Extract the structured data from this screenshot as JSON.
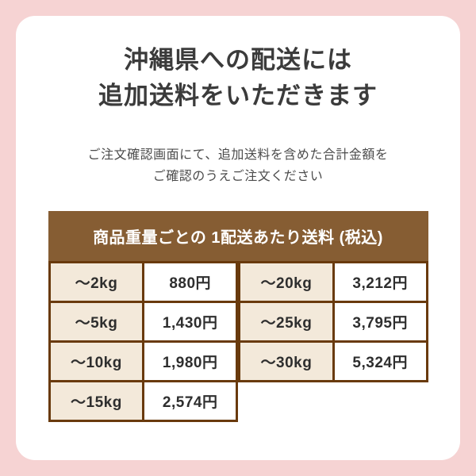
{
  "notice": {
    "title_line1": "沖縄県への配送には",
    "title_line2": "追加送料をいただきます",
    "subtitle_line1": "ご注文確認画面にて、追加送料を含めた合計金額を",
    "subtitle_line2": "ご確認のうえご注文ください"
  },
  "fee_table": {
    "header": "商品重量ごとの 1配送あたり送料 (税込)",
    "left_rows": [
      {
        "weight": "～2kg",
        "price": "880円"
      },
      {
        "weight": "～5kg",
        "price": "1,430円"
      },
      {
        "weight": "～10kg",
        "price": "1,980円"
      },
      {
        "weight": "～15kg",
        "price": "2,574円"
      }
    ],
    "right_rows": [
      {
        "weight": "～20kg",
        "price": "3,212円"
      },
      {
        "weight": "～25kg",
        "price": "3,795円"
      },
      {
        "weight": "～30kg",
        "price": "5,324円"
      }
    ]
  },
  "colors": {
    "background": "#f6d3d3",
    "card": "#ffffff",
    "table_header_bg": "#865d33",
    "table_border": "#693a0d",
    "weight_cell_bg": "#f3e9da",
    "price_cell_bg": "#ffffff",
    "header_text": "#ffffff",
    "title_text": "#3b3b3b",
    "subtitle_text": "#4c4c4c",
    "cell_text": "#2e2e2e"
  }
}
